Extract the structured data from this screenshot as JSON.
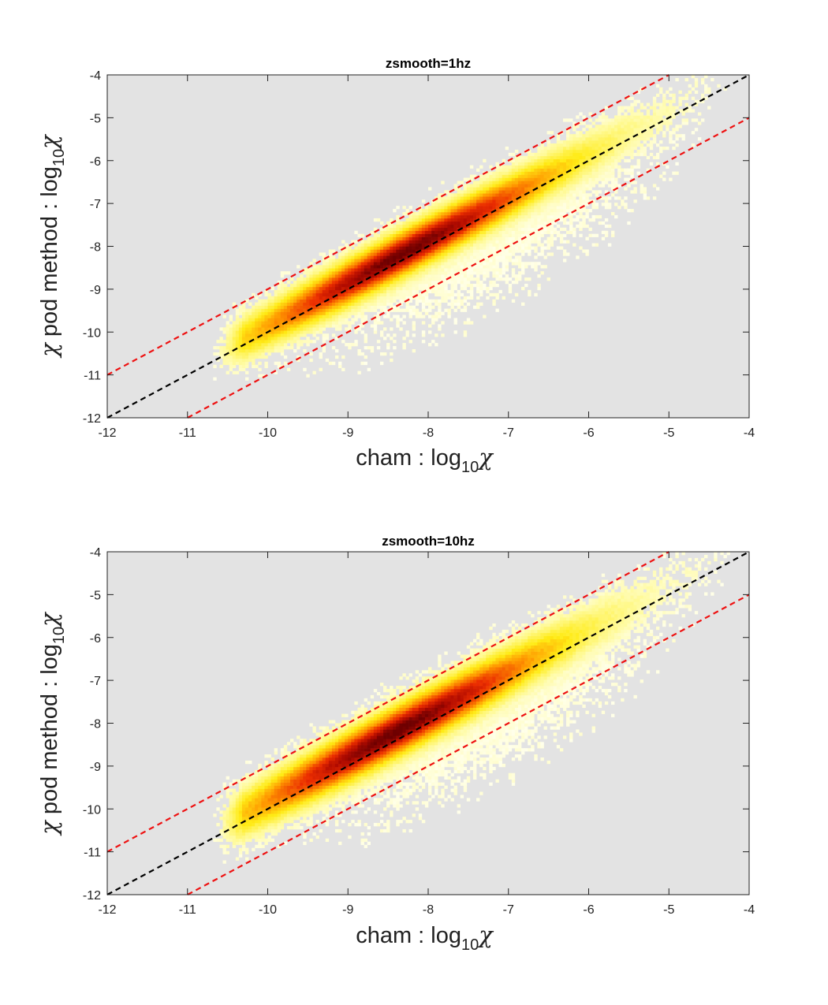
{
  "chart_data": [
    {
      "type": "heatmap",
      "title": "zsmooth=1hz",
      "xlabel": {
        "prefix": "cham : log",
        "sub": "10",
        "sym": "χ"
      },
      "ylabel": {
        "sym": "χ",
        "prefix": " pod method : log",
        "sub": "10",
        "sym2": "χ"
      },
      "xlim": [
        -12,
        -4
      ],
      "ylim": [
        -12,
        -4
      ],
      "xticks": [
        "-12",
        "-11",
        "-10",
        "-9",
        "-8",
        "-7",
        "-6",
        "-5",
        "-4"
      ],
      "yticks": [
        "-4",
        "-5",
        "-6",
        "-7",
        "-8",
        "-9",
        "-10",
        "-11",
        "-12"
      ],
      "background_color": "#e3e3e3",
      "colormap": "hot",
      "density": {
        "ridge_x_range": [
          -10.7,
          -4.4
        ],
        "ridge_offset": 0.15,
        "peak_x": -8.3,
        "spread_y": 0.38
      },
      "reference_lines": [
        {
          "name": "1:1",
          "color": "#000000",
          "offset": 0,
          "style": "dashed"
        },
        {
          "name": "+1",
          "color": "#ee1111",
          "offset": 1,
          "style": "dashed"
        },
        {
          "name": "-1",
          "color": "#ee1111",
          "offset": -1,
          "style": "dashed"
        }
      ]
    },
    {
      "type": "heatmap",
      "title": "zsmooth=10hz",
      "xlabel": {
        "prefix": "cham : log",
        "sub": "10",
        "sym": "χ"
      },
      "ylabel": {
        "sym": "χ",
        "prefix": " pod method : log",
        "sub": "10",
        "sym2": "χ"
      },
      "xlim": [
        -12,
        -4
      ],
      "ylim": [
        -12,
        -4
      ],
      "xticks": [
        "-12",
        "-11",
        "-10",
        "-9",
        "-8",
        "-7",
        "-6",
        "-5",
        "-4"
      ],
      "yticks": [
        "-4",
        "-5",
        "-6",
        "-7",
        "-8",
        "-9",
        "-10",
        "-11",
        "-12"
      ],
      "background_color": "#e3e3e3",
      "colormap": "hot",
      "density": {
        "ridge_x_range": [
          -10.7,
          -4.3
        ],
        "ridge_offset": 0.2,
        "peak_x": -8.4,
        "spread_y": 0.42
      },
      "reference_lines": [
        {
          "name": "1:1",
          "color": "#000000",
          "offset": 0,
          "style": "dashed"
        },
        {
          "name": "+1",
          "color": "#ee1111",
          "offset": 1,
          "style": "dashed"
        },
        {
          "name": "-1",
          "color": "#ee1111",
          "offset": -1,
          "style": "dashed"
        }
      ]
    }
  ]
}
